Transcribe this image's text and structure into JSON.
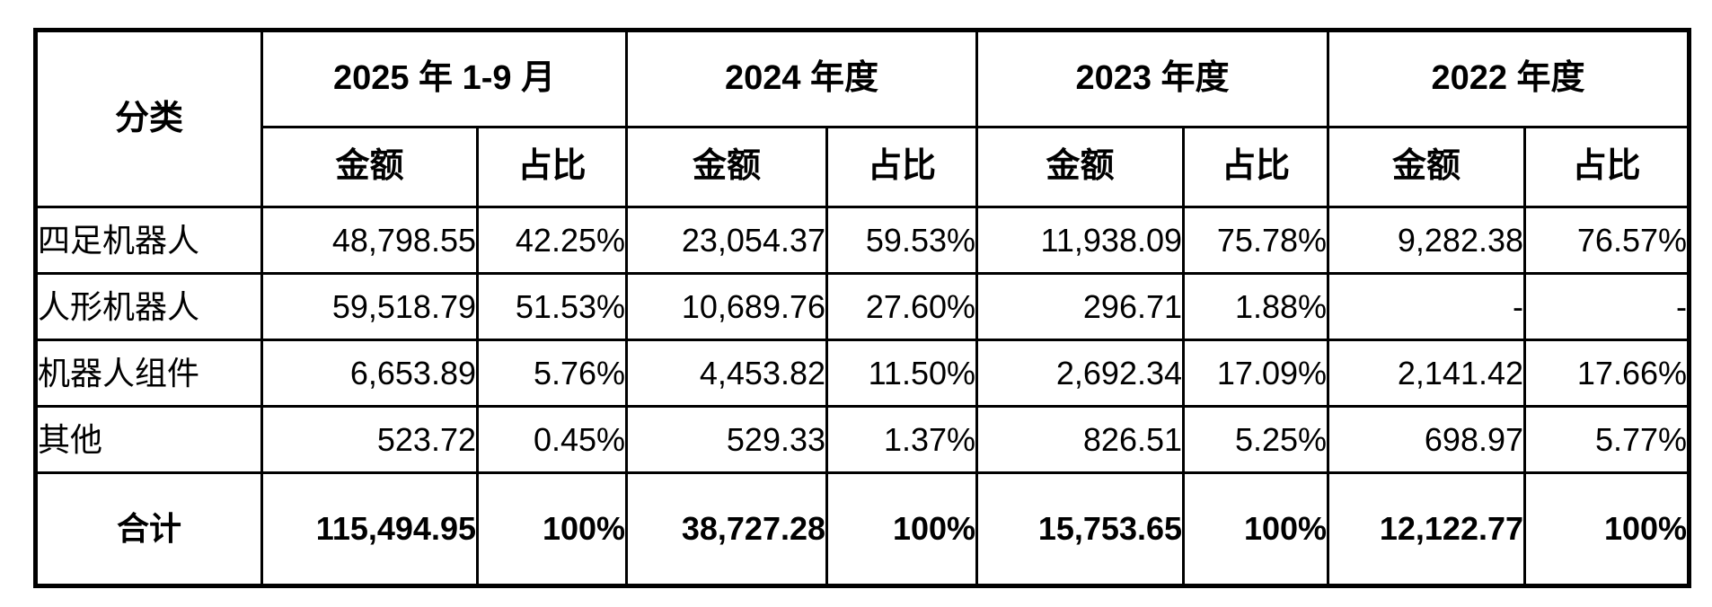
{
  "table": {
    "header": {
      "category_label": "分类",
      "periods": [
        {
          "label": "2025 年 1-9 月"
        },
        {
          "label": "2024 年度"
        },
        {
          "label": "2023 年度"
        },
        {
          "label": "2022 年度"
        }
      ],
      "amount_label": "金额",
      "ratio_label": "占比"
    },
    "rows": [
      {
        "cells": [
          "四足机器人",
          "48,798.55",
          "42.25%",
          "23,054.37",
          "59.53%",
          "11,938.09",
          "75.78%",
          "9,282.38",
          "76.57%"
        ]
      },
      {
        "cells": [
          "人形机器人",
          "59,518.79",
          "51.53%",
          "10,689.76",
          "27.60%",
          "296.71",
          "1.88%",
          "-",
          "-"
        ]
      },
      {
        "cells": [
          "机器人组件",
          "6,653.89",
          "5.76%",
          "4,453.82",
          "11.50%",
          "2,692.34",
          "17.09%",
          "2,141.42",
          "17.66%"
        ]
      },
      {
        "cells": [
          "其他",
          "523.72",
          "0.45%",
          "529.33",
          "1.37%",
          "826.51",
          "5.25%",
          "698.97",
          "5.77%"
        ]
      }
    ],
    "total": {
      "cells": [
        "合计",
        "115,494.95",
        "100%",
        "38,727.28",
        "100%",
        "15,753.65",
        "100%",
        "12,122.77",
        "100%"
      ]
    }
  },
  "colors": {
    "border": "#000000",
    "text": "#000000",
    "background": "#ffffff"
  }
}
